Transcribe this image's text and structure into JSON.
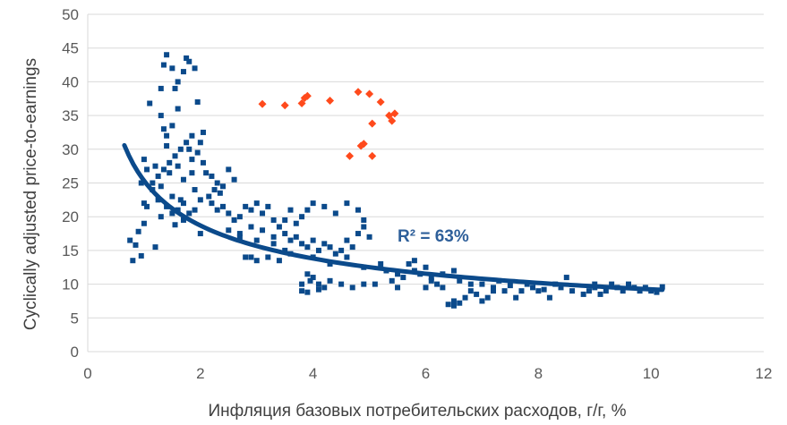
{
  "chart_data": {
    "type": "scatter",
    "title": "",
    "xlabel": "Инфляция базовых потребительских расходов, г/г, %",
    "ylabel": "Cyclically adjusted price-to-earnings",
    "xlim": [
      0,
      12
    ],
    "ylim": [
      0,
      50
    ],
    "xticks": [
      0,
      2,
      4,
      6,
      8,
      10,
      12
    ],
    "yticks": [
      0,
      5,
      10,
      15,
      20,
      25,
      30,
      35,
      40,
      45,
      50
    ],
    "x_tick_labels": [
      "0",
      "2",
      "4",
      "6",
      "8",
      "10",
      "12"
    ],
    "y_tick_labels": [
      "0",
      "5",
      "10",
      "15",
      "20",
      "25",
      "30",
      "35",
      "40",
      "45",
      "50"
    ],
    "grid": "horizontal",
    "legend": "none",
    "annotation": "R² = 63%",
    "colors": {
      "main": "#0b4a8b",
      "highlight": "#ff4a1c",
      "trend": "#0b4a8b",
      "annotation": "#2e5f9a",
      "grid": "#d9d9d9"
    },
    "trendline": {
      "type": "power",
      "a": 25.33,
      "b": -0.438,
      "x_range": [
        0.65,
        10.2
      ]
    },
    "series": [
      {
        "name": "historical",
        "marker": "square",
        "points": [
          [
            0.75,
            16.5
          ],
          [
            0.8,
            13.5
          ],
          [
            0.85,
            15.8
          ],
          [
            0.9,
            17.8
          ],
          [
            0.95,
            14.2
          ],
          [
            1.0,
            22.0
          ],
          [
            1.0,
            28.5
          ],
          [
            1.05,
            27.0
          ],
          [
            1.1,
            36.8
          ],
          [
            1.15,
            24.0
          ],
          [
            1.2,
            15.5
          ],
          [
            1.25,
            22.5
          ],
          [
            1.3,
            20.0
          ],
          [
            1.3,
            39.0
          ],
          [
            1.35,
            42.5
          ],
          [
            1.4,
            44.0
          ],
          [
            1.4,
            30.5
          ],
          [
            1.45,
            26.5
          ],
          [
            1.5,
            33.5
          ],
          [
            1.5,
            23.0
          ],
          [
            1.55,
            18.8
          ],
          [
            1.6,
            27.5
          ],
          [
            1.6,
            36.0
          ],
          [
            1.65,
            22.5
          ],
          [
            1.7,
            25.5
          ],
          [
            1.7,
            19.5
          ],
          [
            1.75,
            43.5
          ],
          [
            1.8,
            30.0
          ],
          [
            1.85,
            28.5
          ],
          [
            1.9,
            24.0
          ],
          [
            1.95,
            37.0
          ],
          [
            2.0,
            31.0
          ],
          [
            2.05,
            32.5
          ],
          [
            2.1,
            26.5
          ],
          [
            2.0,
            17.5
          ],
          [
            1.3,
            24.5
          ],
          [
            1.4,
            21.5
          ],
          [
            1.5,
            20.5
          ],
          [
            1.6,
            21.0
          ],
          [
            1.7,
            22.0
          ],
          [
            1.8,
            20.5
          ],
          [
            1.9,
            21.0
          ],
          [
            2.0,
            22.5
          ],
          [
            1.25,
            26.0
          ],
          [
            1.35,
            27.0
          ],
          [
            1.45,
            28.0
          ],
          [
            1.55,
            29.0
          ],
          [
            1.65,
            30.0
          ],
          [
            1.75,
            31.0
          ],
          [
            1.85,
            32.0
          ],
          [
            1.6,
            40.0
          ],
          [
            1.7,
            41.5
          ],
          [
            1.8,
            43.0
          ],
          [
            1.9,
            42.0
          ],
          [
            1.5,
            42.0
          ],
          [
            1.3,
            35.0
          ],
          [
            1.35,
            33.0
          ],
          [
            1.4,
            32.0
          ],
          [
            1.2,
            27.5
          ],
          [
            1.15,
            25.0
          ],
          [
            2.2,
            26.0
          ],
          [
            2.3,
            25.0
          ],
          [
            2.4,
            24.5
          ],
          [
            2.5,
            27.0
          ],
          [
            2.6,
            25.5
          ],
          [
            2.2,
            22.0
          ],
          [
            2.3,
            21.0
          ],
          [
            2.4,
            21.5
          ],
          [
            2.5,
            20.5
          ],
          [
            2.6,
            19.5
          ],
          [
            2.7,
            20.0
          ],
          [
            2.8,
            21.5
          ],
          [
            2.9,
            21.0
          ],
          [
            3.0,
            22.0
          ],
          [
            3.1,
            20.5
          ],
          [
            3.2,
            21.5
          ],
          [
            3.3,
            19.5
          ],
          [
            2.5,
            18.0
          ],
          [
            2.7,
            17.5
          ],
          [
            2.9,
            18.5
          ],
          [
            3.1,
            18.0
          ],
          [
            3.3,
            17.0
          ],
          [
            3.4,
            18.5
          ],
          [
            3.5,
            17.5
          ],
          [
            3.6,
            16.5
          ],
          [
            3.7,
            17.0
          ],
          [
            3.8,
            16.0
          ],
          [
            3.9,
            15.5
          ],
          [
            4.0,
            16.5
          ],
          [
            4.1,
            15.0
          ],
          [
            4.2,
            16.0
          ],
          [
            4.3,
            15.5
          ],
          [
            4.4,
            14.5
          ],
          [
            4.5,
            15.0
          ],
          [
            4.6,
            16.5
          ],
          [
            4.7,
            15.5
          ],
          [
            4.8,
            17.5
          ],
          [
            4.9,
            18.5
          ],
          [
            5.0,
            17.0
          ],
          [
            3.7,
            19.0
          ],
          [
            3.8,
            20.0
          ],
          [
            3.9,
            21.0
          ],
          [
            4.0,
            22.0
          ],
          [
            4.2,
            21.5
          ],
          [
            4.4,
            20.5
          ],
          [
            4.6,
            22.0
          ],
          [
            4.8,
            21.0
          ],
          [
            4.9,
            19.5
          ],
          [
            3.5,
            19.5
          ],
          [
            3.6,
            21.0
          ],
          [
            2.9,
            14.0
          ],
          [
            3.0,
            13.5
          ],
          [
            3.2,
            14.0
          ],
          [
            3.4,
            13.5
          ],
          [
            3.6,
            14.5
          ],
          [
            2.8,
            14.0
          ],
          [
            3.9,
            11.5
          ],
          [
            3.95,
            10.5
          ],
          [
            4.0,
            11.0
          ],
          [
            3.8,
            10.0
          ],
          [
            4.1,
            10.0
          ],
          [
            4.2,
            9.5
          ],
          [
            4.3,
            10.5
          ],
          [
            4.5,
            10.0
          ],
          [
            4.7,
            9.5
          ],
          [
            4.9,
            10.0
          ],
          [
            5.1,
            10.0
          ],
          [
            3.8,
            9.0
          ],
          [
            3.9,
            8.8
          ],
          [
            4.1,
            9.2
          ],
          [
            5.4,
            10.5
          ],
          [
            5.5,
            9.5
          ],
          [
            5.6,
            11.0
          ],
          [
            5.7,
            13.0
          ],
          [
            5.8,
            12.0
          ],
          [
            5.9,
            11.5
          ],
          [
            6.0,
            12.5
          ],
          [
            6.1,
            11.0
          ],
          [
            6.2,
            10.0
          ],
          [
            6.3,
            9.5
          ],
          [
            6.4,
            7.0
          ],
          [
            6.5,
            7.5
          ],
          [
            6.5,
            6.8
          ],
          [
            6.6,
            7.2
          ],
          [
            6.7,
            8.0
          ],
          [
            6.8,
            9.0
          ],
          [
            6.9,
            8.5
          ],
          [
            7.0,
            7.5
          ],
          [
            7.1,
            8.0
          ],
          [
            7.2,
            9.0
          ],
          [
            6.0,
            9.5
          ],
          [
            6.1,
            10.5
          ],
          [
            6.3,
            11.5
          ],
          [
            6.5,
            12.0
          ],
          [
            6.6,
            10.5
          ],
          [
            6.8,
            10.0
          ],
          [
            7.0,
            10.0
          ],
          [
            7.2,
            9.5
          ],
          [
            7.4,
            9.0
          ],
          [
            7.5,
            9.8
          ],
          [
            7.6,
            8.0
          ],
          [
            7.7,
            9.0
          ],
          [
            7.8,
            10.0
          ],
          [
            7.9,
            9.5
          ],
          [
            8.0,
            9.0
          ],
          [
            8.1,
            9.2
          ],
          [
            8.2,
            8.0
          ],
          [
            8.3,
            10.0
          ],
          [
            8.4,
            9.5
          ],
          [
            8.6,
            9.0
          ],
          [
            8.8,
            8.5
          ],
          [
            8.9,
            9.0
          ],
          [
            9.0,
            9.5
          ],
          [
            9.1,
            8.5
          ],
          [
            9.2,
            9.0
          ],
          [
            9.3,
            10.0
          ],
          [
            9.4,
            9.5
          ],
          [
            9.5,
            9.0
          ],
          [
            9.6,
            10.0
          ],
          [
            9.7,
            9.5
          ],
          [
            9.8,
            9.0
          ],
          [
            9.9,
            9.5
          ],
          [
            10.0,
            9.0
          ],
          [
            10.1,
            8.8
          ],
          [
            10.2,
            9.6
          ],
          [
            9.0,
            10.0
          ],
          [
            8.5,
            11.0
          ],
          [
            7.3,
            10.5
          ],
          [
            5.8,
            13.5
          ],
          [
            5.2,
            13.0
          ],
          [
            4.0,
            14.0
          ],
          [
            4.3,
            13.0
          ],
          [
            4.6,
            14.0
          ],
          [
            4.9,
            12.5
          ],
          [
            5.3,
            12.0
          ],
          [
            5.5,
            11.5
          ],
          [
            3.5,
            15.0
          ],
          [
            3.3,
            16.0
          ],
          [
            3.0,
            16.5
          ],
          [
            2.7,
            17.0
          ],
          [
            1.55,
            39.0
          ],
          [
            1.95,
            29.5
          ],
          [
            2.05,
            28.0
          ],
          [
            1.0,
            19.0
          ],
          [
            1.05,
            21.5
          ],
          [
            0.95,
            25.0
          ],
          [
            2.15,
            23.0
          ],
          [
            2.25,
            24.0
          ],
          [
            2.35,
            23.5
          ],
          [
            1.85,
            26.5
          ]
        ]
      },
      {
        "name": "recent",
        "marker": "diamond",
        "points": [
          [
            3.1,
            36.7
          ],
          [
            3.5,
            36.5
          ],
          [
            3.8,
            36.8
          ],
          [
            3.85,
            37.6
          ],
          [
            3.9,
            37.9
          ],
          [
            4.3,
            37.2
          ],
          [
            4.8,
            38.5
          ],
          [
            5.0,
            38.2
          ],
          [
            5.2,
            37.0
          ],
          [
            5.35,
            35.0
          ],
          [
            5.45,
            35.3
          ],
          [
            5.4,
            34.2
          ],
          [
            5.05,
            33.8
          ],
          [
            4.9,
            30.8
          ],
          [
            4.85,
            30.5
          ],
          [
            4.65,
            29.0
          ],
          [
            5.05,
            29.0
          ]
        ]
      }
    ]
  }
}
